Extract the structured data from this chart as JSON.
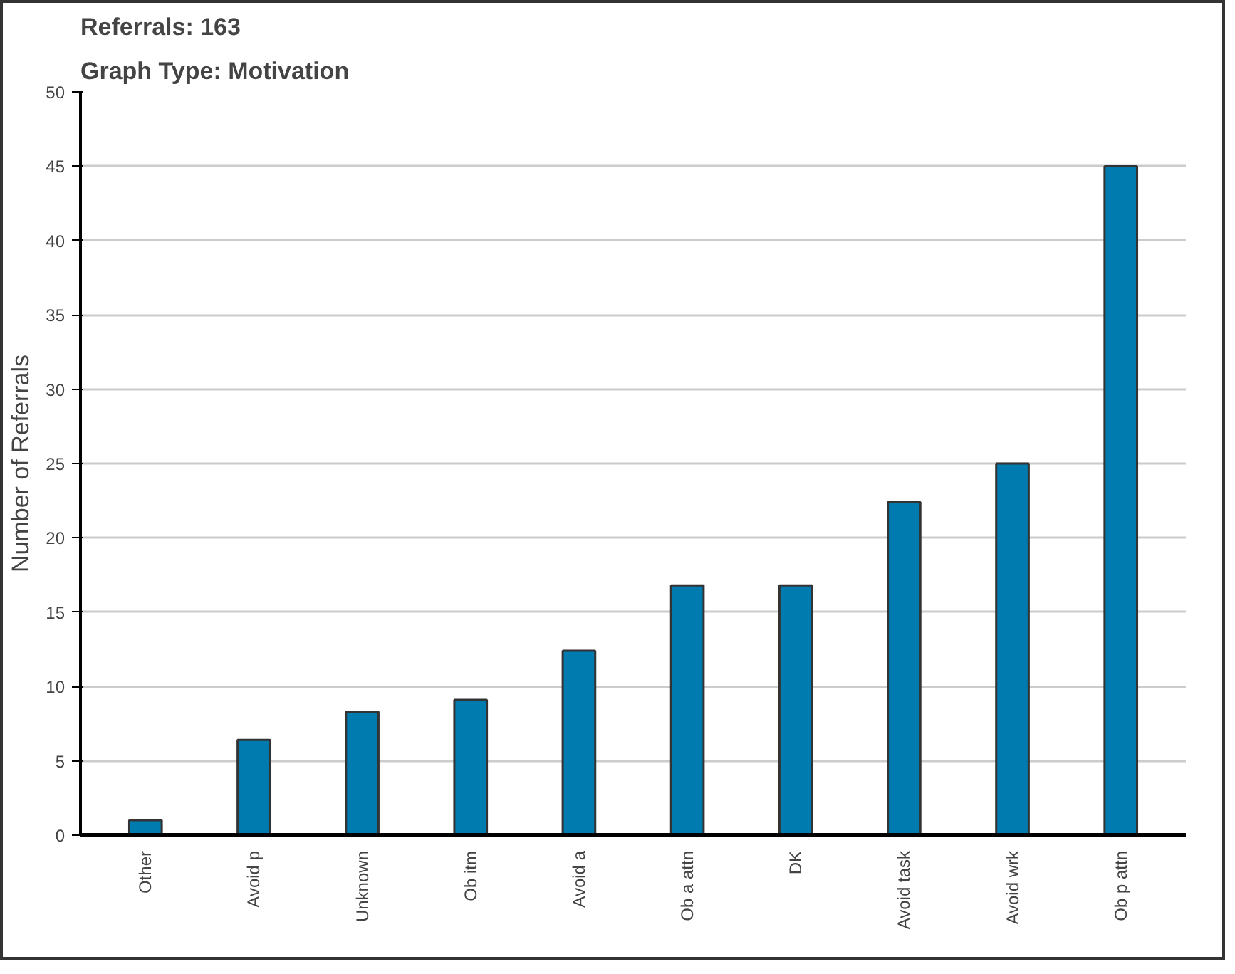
{
  "chart_data": {
    "type": "bar",
    "title": "Referrals: 163",
    "subtitle": "Graph Type: Motivation",
    "ylabel": "Number of Referrals",
    "categories": [
      "Other",
      "Avoid p",
      "Unknown",
      "Ob itm",
      "Avoid a",
      "Ob a attn",
      "DK",
      "Avoid task",
      "Avoid wrk",
      "Ob p attn"
    ],
    "values": [
      1,
      6.4,
      8.3,
      9.1,
      12.4,
      16.8,
      16.8,
      22.4,
      25,
      45
    ],
    "color": "#007bb0",
    "ylim": [
      0,
      50
    ],
    "yticks": [
      0,
      5,
      10,
      15,
      20,
      25,
      30,
      35,
      40,
      45,
      50
    ],
    "grid": "y"
  }
}
